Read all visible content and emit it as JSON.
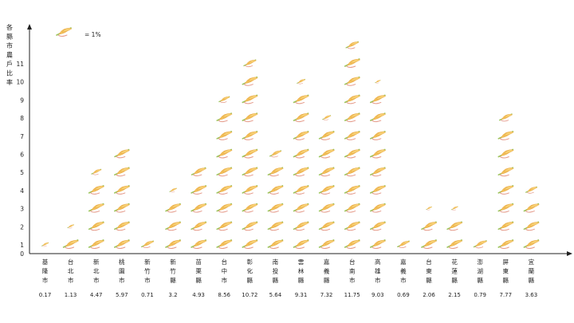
{
  "chart_data": {
    "type": "bar",
    "title": "",
    "ylabel": "各縣市農戶比率",
    "xlabel": "",
    "legend": {
      "label": "= 1%",
      "icon": "rice-stalk-icon",
      "placement": "top-left"
    },
    "y_ticks": [
      0,
      1,
      2,
      3,
      4,
      5,
      6,
      7,
      8,
      9,
      10,
      11
    ],
    "ylim": [
      0,
      12
    ],
    "grid": false,
    "categories": [
      "基隆市",
      "台北市",
      "新北市",
      "桃園市",
      "新竹市",
      "新竹縣",
      "苗栗縣",
      "台中市",
      "彰化縣",
      "南投縣",
      "雲林縣",
      "嘉義縣",
      "台南市",
      "高雄市",
      "嘉義市",
      "台東縣",
      "花蓮縣",
      "澎湖縣",
      "屏東縣",
      "宜蘭縣"
    ],
    "values": [
      0.17,
      1.13,
      4.47,
      5.97,
      0.71,
      3.2,
      4.93,
      8.56,
      10.72,
      5.64,
      9.31,
      7.32,
      11.75,
      9.03,
      0.69,
      2.06,
      2.15,
      0.79,
      7.77,
      3.63
    ],
    "value_labels": [
      "0.17",
      "1.13",
      "4.47",
      "5.97",
      "0.71",
      "3.2",
      "4.93",
      "8.56",
      "10.72",
      "5.64",
      "9.31",
      "7.32",
      "11.75",
      "9.03",
      "0.69",
      "2.06",
      "2.15",
      "0.79",
      "7.77",
      "3.63"
    ],
    "colors": {
      "leaf": "#f2c15a",
      "leaf_edge": "#e8a23a",
      "stem": "#9cc45a",
      "axis": "#222222"
    }
  }
}
